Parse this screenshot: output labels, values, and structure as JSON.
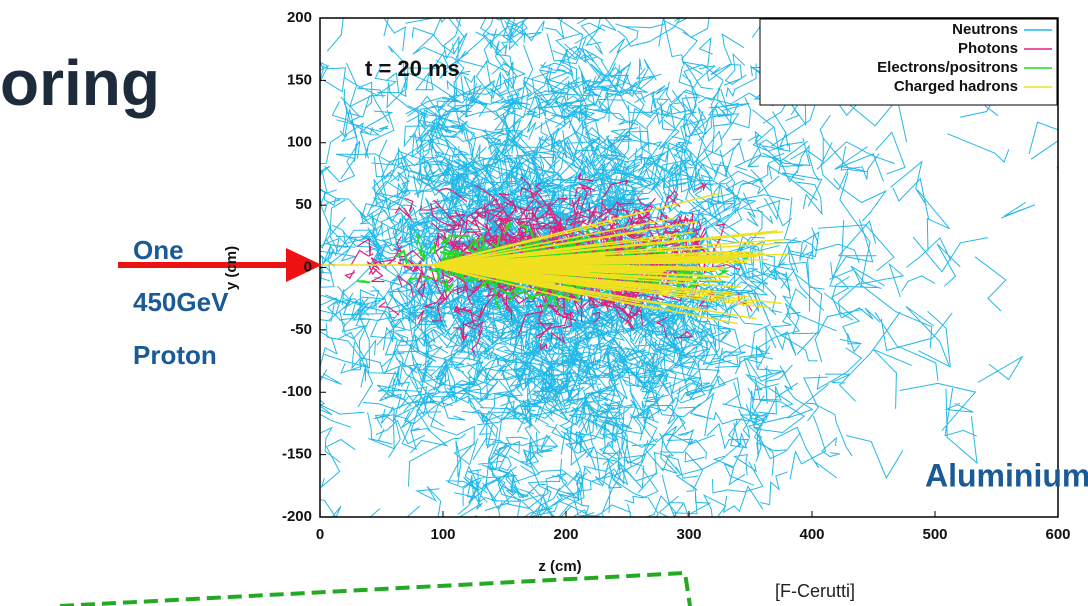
{
  "slide": {
    "title": "oring",
    "beam_label": [
      "One",
      "450GeV",
      "Proton"
    ],
    "material": "Aluminium",
    "credit": "[F-Cerutti]"
  },
  "chart_data": {
    "type": "tracks",
    "annotation": "t = 20 ms",
    "xlabel": "z (cm)",
    "ylabel": "y (cm)",
    "xlim": [
      0,
      600
    ],
    "xticks": [
      0,
      100,
      200,
      300,
      400,
      500,
      600
    ],
    "ylim": [
      -200,
      200
    ],
    "yticks": [
      -200,
      -150,
      -100,
      -50,
      0,
      50,
      100,
      150,
      200
    ],
    "legend": "upper right",
    "series": [
      {
        "name": "Neutrons",
        "color": "#22b8e8"
      },
      {
        "name": "Photons",
        "color": "#e0207a"
      },
      {
        "name": "Electrons/positrons",
        "color": "#22dd22"
      },
      {
        "name": "Charged hadrons",
        "color": "#f0e020"
      }
    ]
  }
}
